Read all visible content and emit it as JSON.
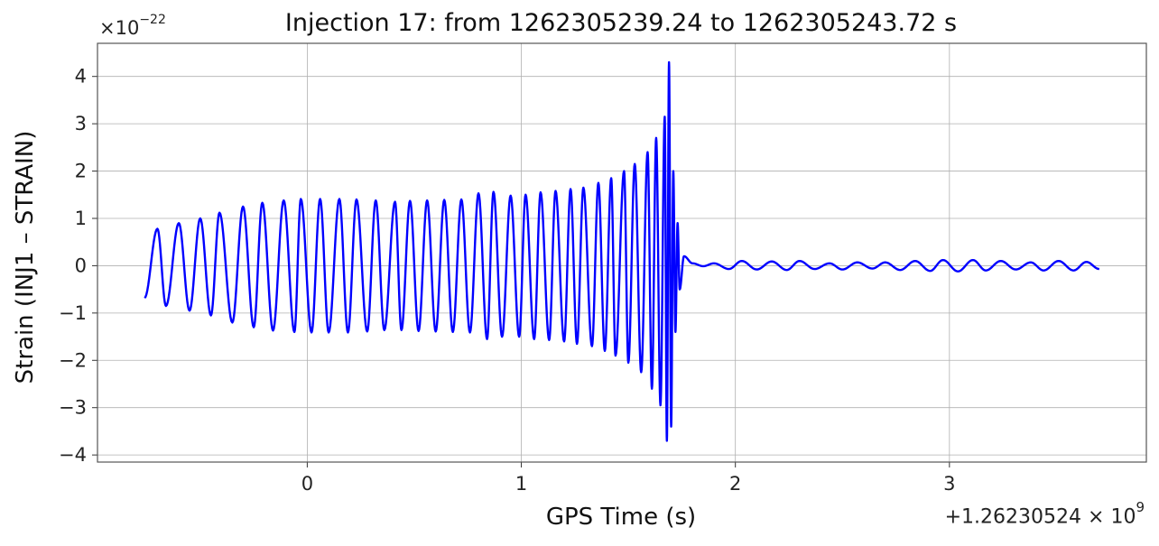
{
  "chart_data": {
    "type": "line",
    "title": "Injection 17: from 1262305239.24 to 1262305243.72 s",
    "xlabel": "GPS Time (s)",
    "ylabel": "Strain (INJ1 – STRAIN)",
    "y_scale_label": "×10",
    "y_scale_exp": "−22",
    "x_offset_label": "+1.26230524 × 10",
    "x_offset_exp": "9",
    "xlim": [
      -0.98,
      3.92
    ],
    "ylim": [
      -4.15,
      4.7
    ],
    "xticks": [
      0,
      1,
      2,
      3
    ],
    "xtick_labels": [
      "0",
      "1",
      "2",
      "3"
    ],
    "yticks": [
      -4,
      -3,
      -2,
      -1,
      0,
      1,
      2,
      3,
      4
    ],
    "ytick_labels": [
      "−4",
      "−3",
      "−2",
      "−1",
      "0",
      "1",
      "2",
      "3",
      "4"
    ],
    "grid": true,
    "color": "#0000ff",
    "series": [
      {
        "x": [
          -0.76,
          -0.7,
          -0.66,
          -0.6,
          -0.55,
          -0.5,
          -0.45,
          -0.41,
          -0.35,
          -0.3,
          -0.25,
          -0.21,
          -0.16,
          -0.11,
          -0.06,
          -0.03,
          0.02,
          0.06,
          0.1,
          0.15,
          0.19,
          0.23,
          0.28,
          0.32,
          0.36,
          0.41,
          0.44,
          0.48,
          0.52,
          0.56,
          0.6,
          0.64,
          0.68,
          0.72,
          0.76,
          0.8,
          0.84,
          0.87,
          0.91,
          0.95,
          0.99,
          1.02,
          1.06,
          1.09,
          1.13,
          1.16,
          1.2,
          1.23,
          1.26,
          1.29,
          1.33,
          1.36,
          1.39,
          1.42,
          1.44,
          1.48,
          1.5,
          1.53,
          1.56,
          1.59,
          1.61,
          1.63,
          1.65,
          1.67,
          1.68,
          1.69,
          1.7,
          1.71,
          1.72,
          1.73,
          1.74,
          1.76,
          1.8,
          1.85,
          1.9,
          1.97,
          2.03,
          2.1,
          2.17,
          2.24,
          2.3,
          2.37,
          2.44,
          2.5,
          2.57,
          2.64,
          2.7,
          2.77,
          2.84,
          2.91,
          2.97,
          3.04,
          3.11,
          3.17,
          3.24,
          3.31,
          3.38,
          3.44,
          3.51,
          3.58,
          3.64,
          3.7
        ],
        "y": [
          -0.68,
          0.78,
          -0.85,
          0.9,
          -0.95,
          1.0,
          -1.05,
          1.12,
          -1.2,
          1.25,
          -1.3,
          1.33,
          -1.37,
          1.38,
          -1.4,
          1.41,
          -1.41,
          1.41,
          -1.41,
          1.41,
          -1.41,
          1.4,
          -1.39,
          1.38,
          -1.36,
          1.35,
          -1.36,
          1.37,
          -1.38,
          1.38,
          -1.39,
          1.39,
          -1.4,
          1.4,
          -1.41,
          1.53,
          -1.55,
          1.56,
          -1.5,
          1.48,
          -1.5,
          1.5,
          -1.55,
          1.55,
          -1.57,
          1.58,
          -1.6,
          1.62,
          -1.65,
          1.65,
          -1.7,
          1.75,
          -1.8,
          1.85,
          -1.9,
          2.0,
          -2.05,
          2.15,
          -2.25,
          2.4,
          -2.6,
          2.7,
          -2.95,
          3.15,
          -3.7,
          4.3,
          -3.4,
          2.0,
          -1.4,
          0.9,
          -0.5,
          0.2,
          0.05,
          -0.01,
          0.05,
          -0.07,
          0.1,
          -0.08,
          0.09,
          -0.09,
          0.1,
          -0.07,
          0.05,
          -0.08,
          0.07,
          -0.06,
          0.07,
          -0.09,
          0.1,
          -0.11,
          0.12,
          -0.12,
          0.12,
          -0.1,
          0.1,
          -0.08,
          0.07,
          -0.1,
          0.1,
          -0.1,
          0.08,
          -0.07
        ]
      }
    ]
  }
}
